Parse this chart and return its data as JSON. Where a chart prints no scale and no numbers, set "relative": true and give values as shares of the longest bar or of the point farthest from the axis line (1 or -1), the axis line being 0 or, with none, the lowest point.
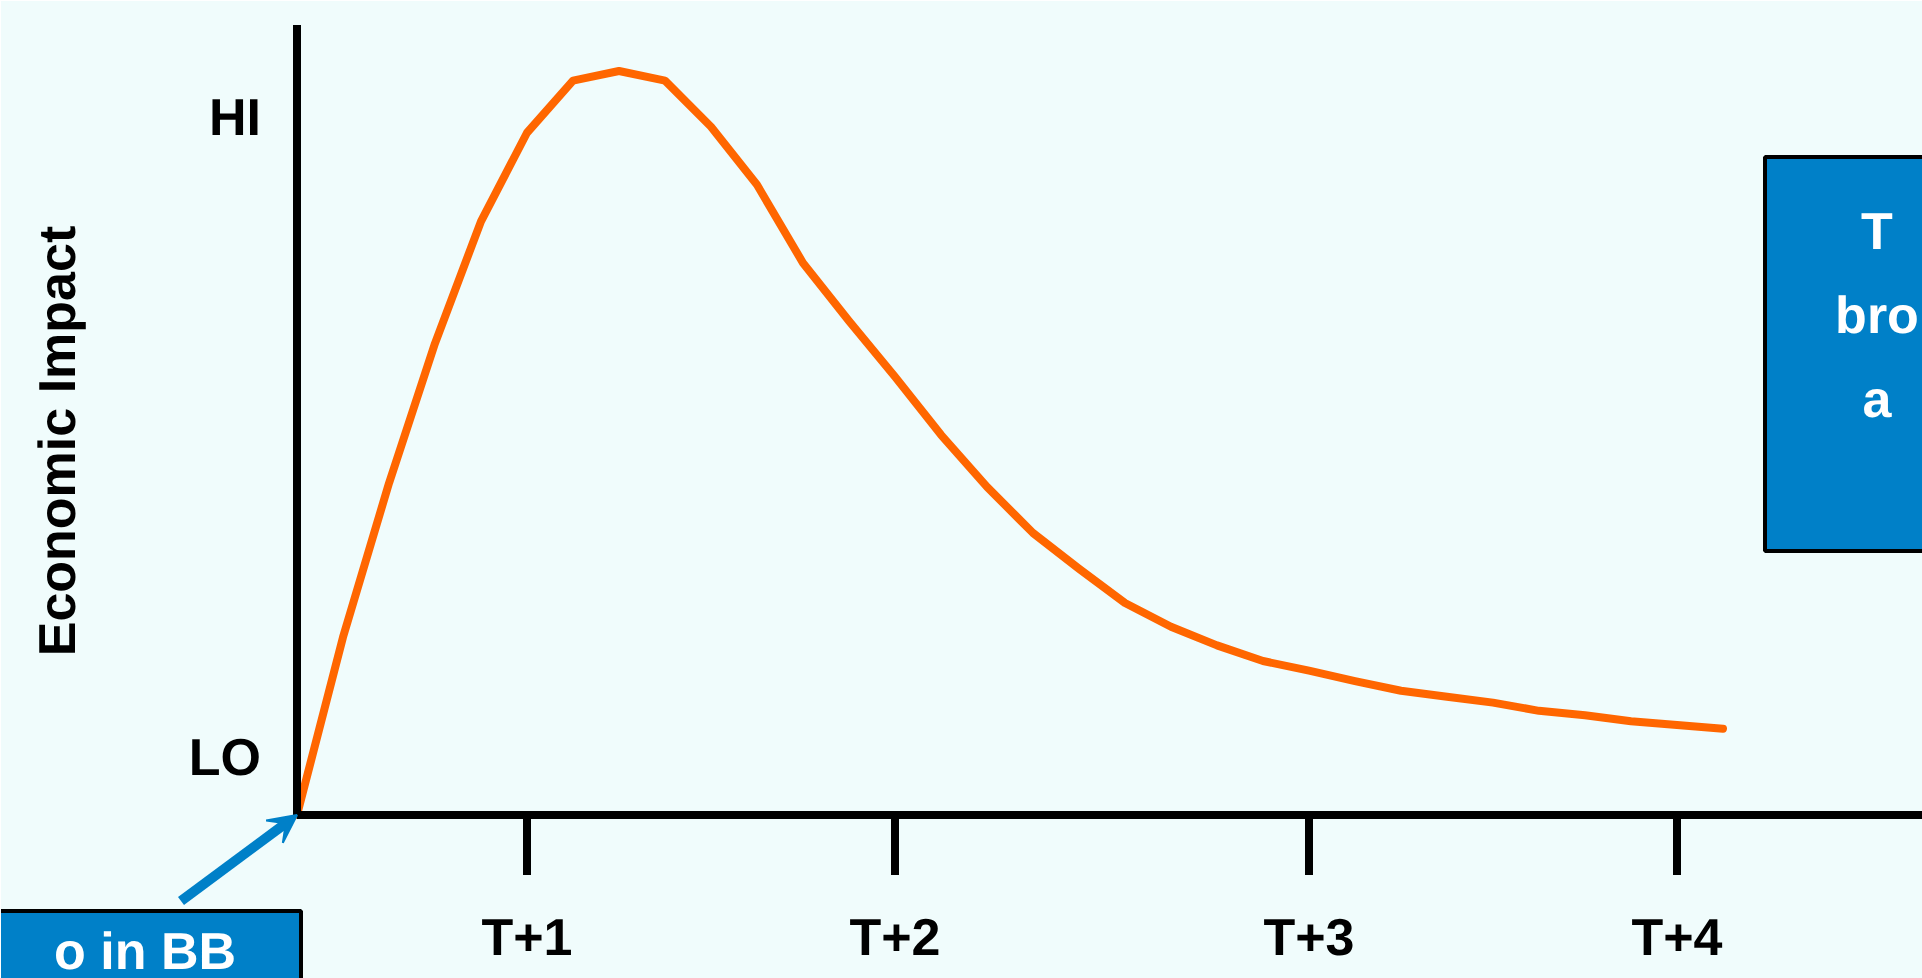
{
  "chart_data": {
    "type": "line",
    "ylabel": "Economic Impact",
    "relative": true,
    "categories": [
      null,
      null,
      null,
      null,
      null,
      "T+1",
      null,
      null,
      null,
      null,
      null,
      null,
      null,
      "T+2",
      null,
      null,
      null,
      null,
      null,
      null,
      null,
      null,
      "T+3",
      null,
      null,
      null,
      null,
      null,
      null,
      null,
      "T+4",
      null
    ],
    "series": [
      {
        "color": "#ff6600",
        "values": [
          0,
          0.239,
          0.446,
          0.634,
          0.798,
          0.917,
          0.987,
          1,
          0.987,
          0.925,
          0.847,
          0.742,
          0.664,
          0.589,
          0.511,
          0.441,
          0.379,
          0.331,
          0.285,
          0.253,
          0.228,
          0.207,
          0.194,
          0.18,
          0.167,
          0.159,
          0.151,
          0.14,
          0.134,
          0.126,
          0.121,
          0.116
        ]
      }
    ],
    "annotations": [
      "HI",
      "LO",
      "T\nbro\na",
      "o in BB"
    ],
    "marker": "none",
    "line_style": "solid"
  }
}
